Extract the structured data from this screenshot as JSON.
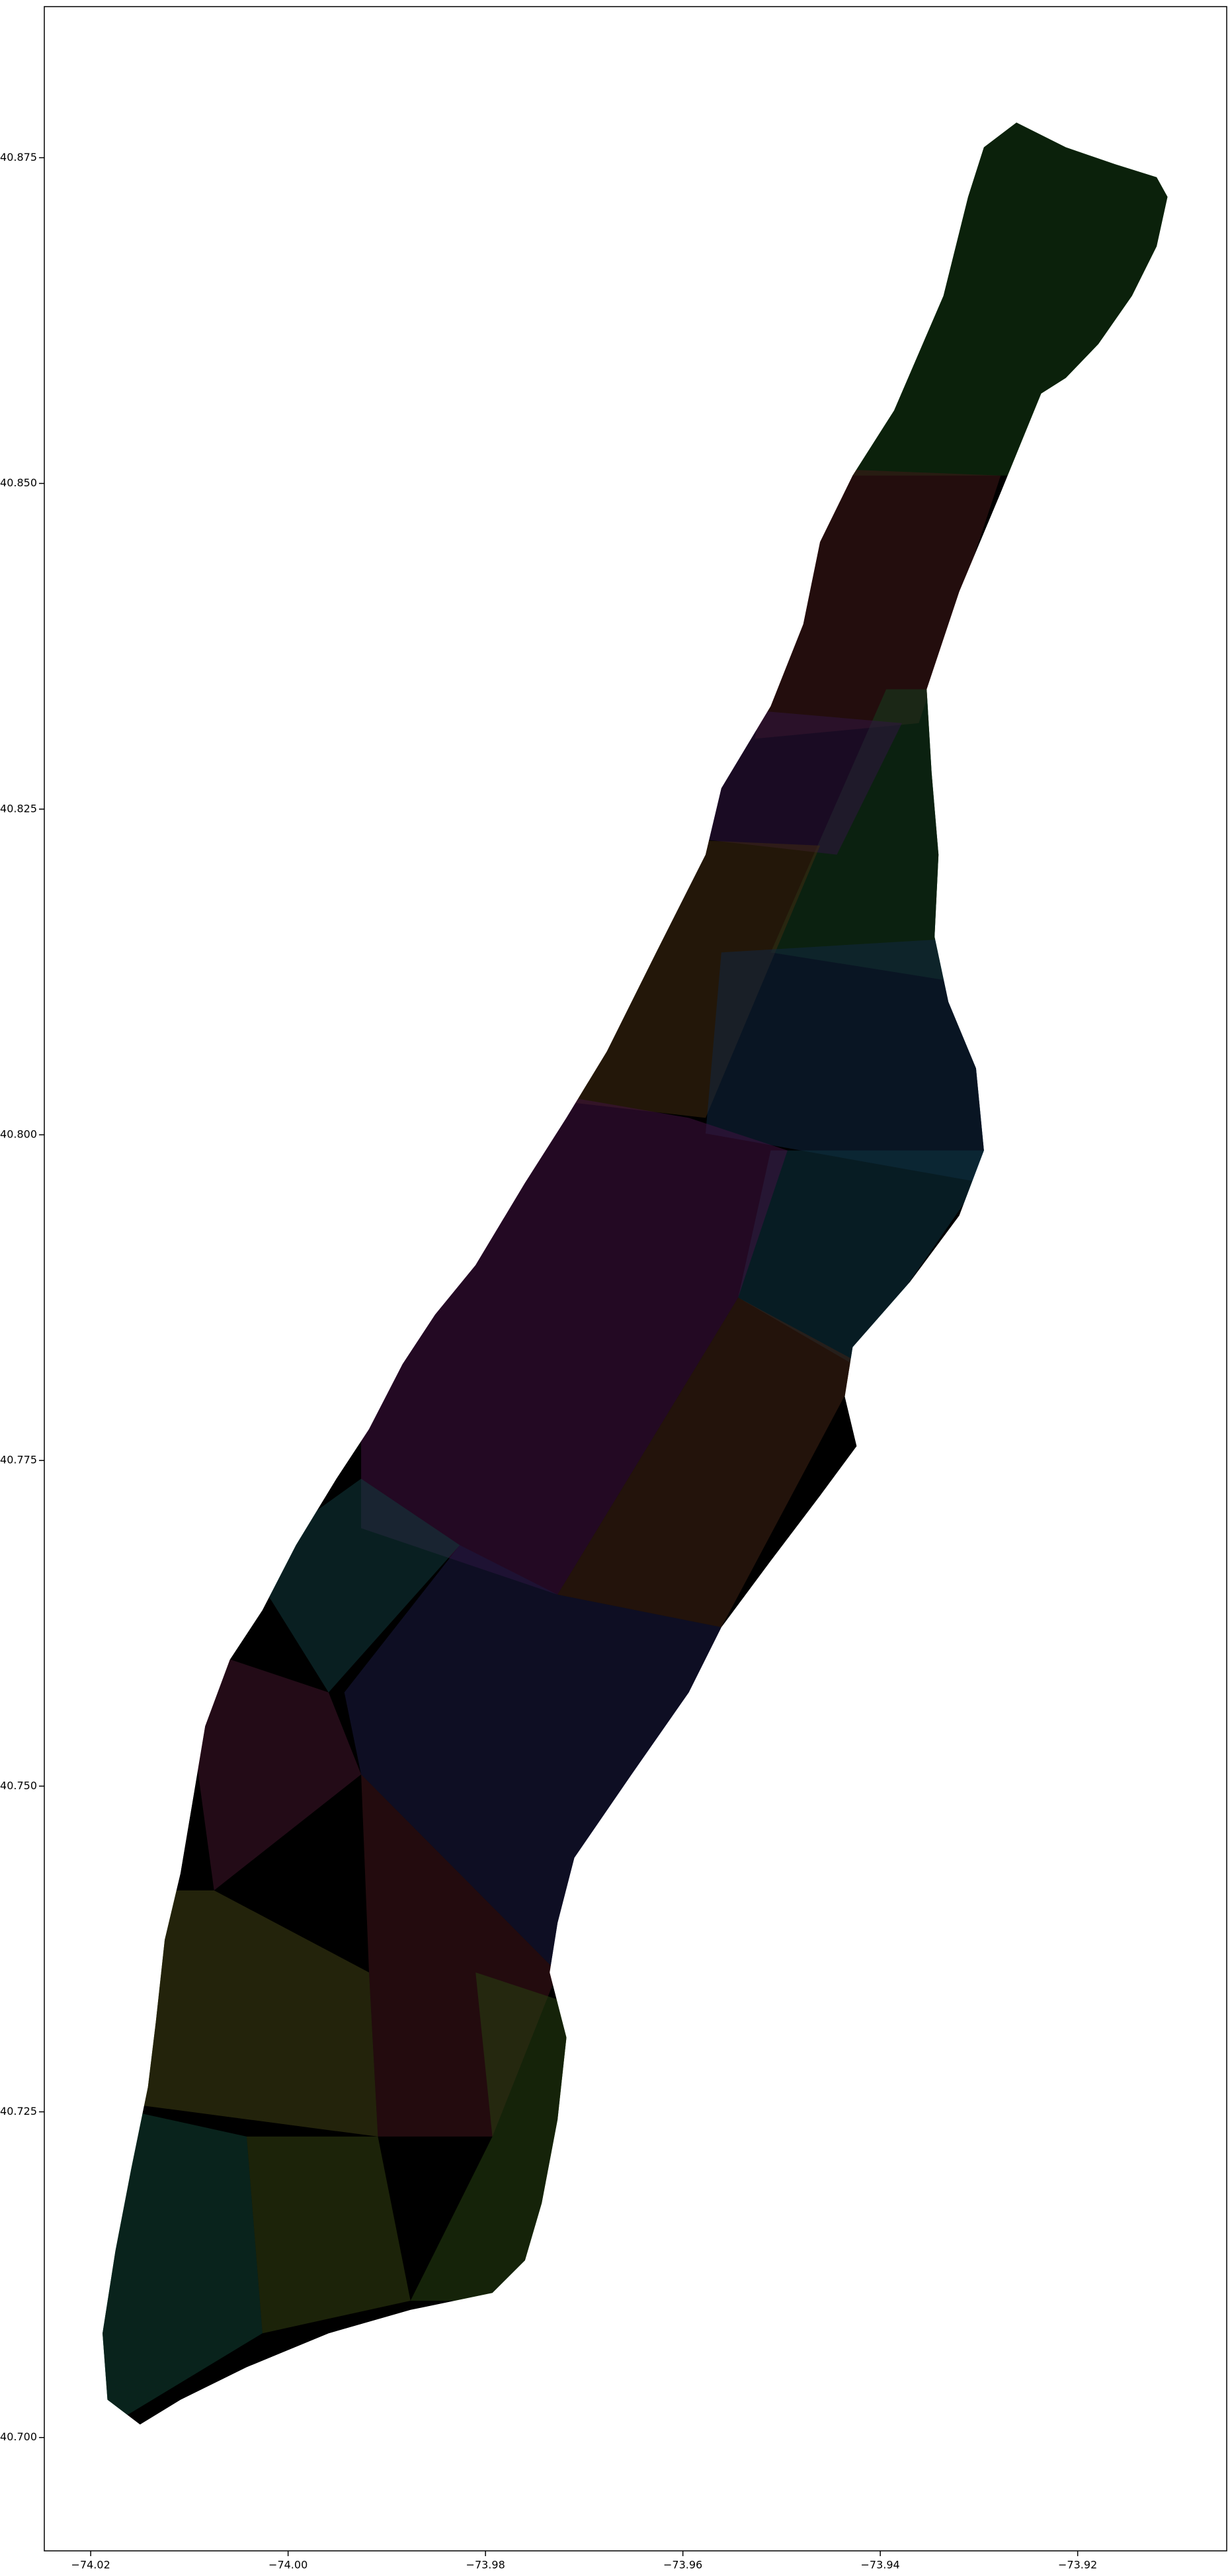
{
  "chart_data": {
    "type": "map",
    "xlim": [
      -74.0247,
      -73.9049
    ],
    "ylim": [
      40.6913,
      40.8866
    ],
    "xticks": [
      {
        "value": -74.02,
        "label": "−74.02"
      },
      {
        "value": -74.0,
        "label": "−74.00"
      },
      {
        "value": -73.98,
        "label": "−73.98"
      },
      {
        "value": -73.96,
        "label": "−73.96"
      },
      {
        "value": -73.94,
        "label": "−73.94"
      },
      {
        "value": -73.92,
        "label": "−73.92"
      }
    ],
    "yticks": [
      {
        "value": 40.7,
        "label": "40.700"
      },
      40.725,
      {
        "value": 40.75,
        "label": "40.750"
      },
      40.775,
      {
        "value": 40.8,
        "label": "40.800"
      },
      40.825,
      {
        "value": 40.85,
        "label": "40.850"
      },
      40.875
    ],
    "grid": false,
    "land": {
      "color": "#000000",
      "lon": [
        -73.9262,
        -73.9212,
        -73.9162,
        -73.912,
        -73.9109,
        -73.912,
        -73.9145,
        -73.9179,
        -73.9212,
        -73.9237,
        -73.9278,
        -73.932,
        -73.9353,
        -73.9348,
        -73.9341,
        -73.9345,
        -73.9331,
        -73.9303,
        -73.9295,
        -73.932,
        -73.937,
        -73.9428,
        -73.9436,
        -73.9424,
        -73.9461,
        -73.9511,
        -73.9561,
        -73.9594,
        -73.9652,
        -73.971,
        -73.9727,
        -73.9735,
        -73.9718,
        -73.9727,
        -73.9743,
        -73.976,
        -73.9793,
        -73.9876,
        -73.9959,
        -74.0042,
        -74.0109,
        -74.015,
        -74.0183,
        -74.0188,
        -74.0175,
        -74.0159,
        -74.0142,
        -74.0134,
        -74.0125,
        -74.0109,
        -74.0095,
        -74.0084,
        -74.0059,
        -74.0026,
        -73.9992,
        -73.9951,
        -73.9918,
        -73.9884,
        -73.9851,
        -73.981,
        -73.976,
        -73.9718,
        -73.9677,
        -73.9627,
        -73.9577,
        -73.9561,
        -73.9511,
        -73.9478,
        -73.9461,
        -73.9428,
        -73.9386,
        -73.9336,
        -73.9311,
        -73.9295
      ],
      "lat": [
        40.8777,
        40.8758,
        40.8745,
        40.8735,
        40.872,
        40.8682,
        40.8644,
        40.8607,
        40.8581,
        40.8569,
        40.8493,
        40.8417,
        40.8342,
        40.8278,
        40.8215,
        40.8152,
        40.8102,
        40.8051,
        40.7988,
        40.7938,
        40.7887,
        40.7837,
        40.7799,
        40.7761,
        40.7723,
        40.7673,
        40.7622,
        40.7572,
        40.7509,
        40.7445,
        40.7395,
        40.7357,
        40.7307,
        40.7244,
        40.718,
        40.7136,
        40.7111,
        40.7098,
        40.708,
        40.7054,
        40.7029,
        40.701,
        40.7029,
        40.708,
        40.7143,
        40.7206,
        40.7269,
        40.7319,
        40.7382,
        40.7433,
        40.7496,
        40.7546,
        40.7597,
        40.7635,
        40.7685,
        40.7736,
        40.7774,
        40.7824,
        40.7862,
        40.79,
        40.7963,
        40.8013,
        40.8064,
        40.814,
        40.8215,
        40.8266,
        40.8329,
        40.8392,
        40.8455,
        40.8506,
        40.8556,
        40.8644,
        40.872,
        40.8758
      ]
    },
    "regions": [
      {
        "color": "#55ee55",
        "lon": [
          -73.9361,
          -73.9095,
          -73.9095,
          -73.9461
        ],
        "lat": [
          40.8777,
          40.8777,
          40.8506,
          40.8506
        ]
      },
      {
        "color": "#ff5e5e",
        "lon": [
          -73.9478,
          -73.9278,
          -73.9361,
          -73.9527
        ],
        "lat": [
          40.8512,
          40.8506,
          40.8316,
          40.8304
        ]
      },
      {
        "color": "#55ee77",
        "lon": [
          -73.9394,
          -73.9295,
          -73.9295,
          -73.9511
        ],
        "lat": [
          40.8342,
          40.8342,
          40.8114,
          40.814
        ]
      },
      {
        "color": "#bb55ff",
        "lon": [
          -73.9577,
          -73.9378,
          -73.9444,
          -73.9594
        ],
        "lat": [
          40.8329,
          40.8316,
          40.8215,
          40.8228
        ]
      },
      {
        "color": "#ffaa44",
        "lon": [
          -73.9644,
          -73.9461,
          -73.9577,
          -73.9727
        ],
        "lat": [
          40.8228,
          40.8222,
          40.8013,
          40.8026
        ]
      },
      {
        "color": "#4499ff",
        "lon": [
          -73.9561,
          -73.9295,
          -73.9295,
          -73.9577
        ],
        "lat": [
          40.814,
          40.8152,
          40.7963,
          40.8001
        ]
      },
      {
        "color": "#33ccff",
        "lon": [
          -73.9511,
          -73.9278,
          -73.9428,
          -73.9544
        ],
        "lat": [
          40.7988,
          40.7988,
          40.7824,
          40.7875
        ]
      },
      {
        "color": "#ff44ff",
        "lon": [
          -73.9793,
          -73.9594,
          -73.9494,
          -73.9544,
          -73.9727,
          -73.9926,
          -73.9926
        ],
        "lat": [
          40.8039,
          40.8013,
          40.7988,
          40.7875,
          40.7647,
          40.7698,
          40.7786
        ]
      },
      {
        "color": "#ff8855",
        "lon": [
          -73.9544,
          -73.9419,
          -73.9561,
          -73.9727
        ],
        "lat": [
          40.7875,
          40.7824,
          40.7622,
          40.7647
        ]
      },
      {
        "color": "#44e6f0",
        "lon": [
          -74.0042,
          -73.9926,
          -73.9826,
          -73.9959
        ],
        "lat": [
          40.7673,
          40.7736,
          40.7685,
          40.7572
        ]
      },
      {
        "color": "#6666ff",
        "lon": [
          -73.9826,
          -73.9727,
          -73.9561,
          -73.9727,
          -73.9926,
          -73.9943
        ],
        "lat": [
          40.7685,
          40.7647,
          40.7622,
          40.7357,
          40.7509,
          40.7572
        ]
      },
      {
        "color": "#ff55aa",
        "lon": [
          -74.0109,
          -73.9959,
          -73.9926,
          -74.0075
        ],
        "lat": [
          40.761,
          40.7572,
          40.7509,
          40.742
        ]
      },
      {
        "color": "#ff5566",
        "lon": [
          -73.9926,
          -73.9727,
          -73.9793,
          -73.9909,
          -73.9918
        ],
        "lat": [
          40.7509,
          40.7357,
          40.7231,
          40.7231,
          40.7357
        ]
      },
      {
        "color": "#99ff44",
        "lon": [
          -73.981,
          -73.971,
          -73.9727,
          -73.9876,
          -73.9793
        ],
        "lat": [
          40.7357,
          40.7332,
          40.7105,
          40.7105,
          40.7231
        ]
      },
      {
        "color": "#ffff55",
        "lon": [
          -74.0159,
          -74.0075,
          -73.9918,
          -73.9909,
          -74.0159
        ],
        "lat": [
          40.742,
          40.742,
          40.7357,
          40.7231,
          40.7256
        ]
      },
      {
        "color": "#ccff44",
        "lon": [
          -74.0042,
          -73.9909,
          -73.9876,
          -74.0026
        ],
        "lat": [
          40.7231,
          40.7231,
          40.7105,
          40.708
        ]
      },
      {
        "color": "#44ffcc",
        "lon": [
          -74.0192,
          -74.0042,
          -74.0026,
          -74.0192
        ],
        "lat": [
          40.7256,
          40.7231,
          40.708,
          40.7004
        ]
      }
    ]
  }
}
